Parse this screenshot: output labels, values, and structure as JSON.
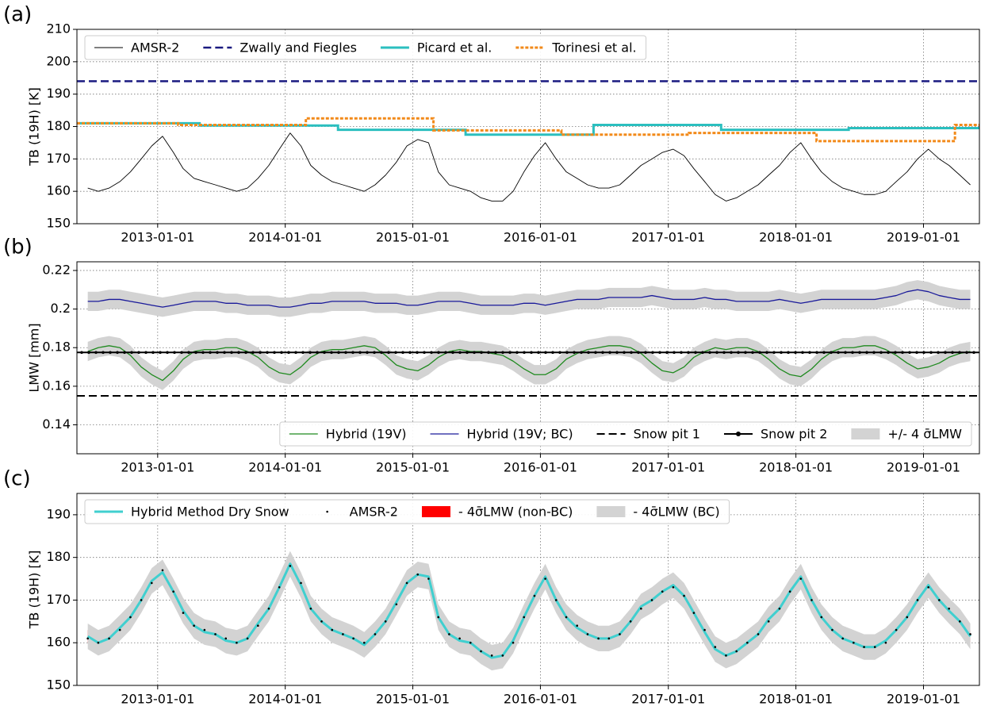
{
  "chart_data": [
    {
      "type": "line",
      "panel_label": "(a)",
      "ylabel": "TB (19H) [K]",
      "xlim": [
        "2012-05-15",
        "2019-06-10"
      ],
      "xticks": [
        "2013-01-01",
        "2014-01-01",
        "2015-01-01",
        "2016-01-01",
        "2017-01-01",
        "2018-01-01",
        "2019-01-01"
      ],
      "ylim": [
        150,
        210
      ],
      "yticks": [
        150,
        160,
        170,
        180,
        190,
        200,
        210
      ],
      "grid": true,
      "legend": "upper left",
      "x": [
        "2012-06-15",
        "2012-07-15",
        "2012-08-15",
        "2012-09-15",
        "2012-10-15",
        "2012-11-15",
        "2012-12-15",
        "2013-01-15",
        "2013-02-15",
        "2013-03-15",
        "2013-04-15",
        "2013-05-15",
        "2013-06-15",
        "2013-07-15",
        "2013-08-15",
        "2013-09-15",
        "2013-10-15",
        "2013-11-15",
        "2013-12-15",
        "2014-01-15",
        "2014-02-15",
        "2014-03-15",
        "2014-04-15",
        "2014-05-15",
        "2014-06-15",
        "2014-07-15",
        "2014-08-15",
        "2014-09-15",
        "2014-10-15",
        "2014-11-15",
        "2014-12-15",
        "2015-01-15",
        "2015-02-15",
        "2015-03-15",
        "2015-04-15",
        "2015-05-15",
        "2015-06-15",
        "2015-07-15",
        "2015-08-15",
        "2015-09-15",
        "2015-10-15",
        "2015-11-15",
        "2015-12-15",
        "2016-01-15",
        "2016-02-15",
        "2016-03-15",
        "2016-04-15",
        "2016-05-15",
        "2016-06-15",
        "2016-07-15",
        "2016-08-15",
        "2016-09-15",
        "2016-10-15",
        "2016-11-15",
        "2016-12-15",
        "2017-01-15",
        "2017-02-15",
        "2017-03-15",
        "2017-04-15",
        "2017-05-15",
        "2017-06-15",
        "2017-07-15",
        "2017-08-15",
        "2017-09-15",
        "2017-10-15",
        "2017-11-15",
        "2017-12-15",
        "2018-01-15",
        "2018-02-15",
        "2018-03-15",
        "2018-04-15",
        "2018-05-15",
        "2018-06-15",
        "2018-07-15",
        "2018-08-15",
        "2018-09-15",
        "2018-10-15",
        "2018-11-15",
        "2018-12-15",
        "2019-01-15",
        "2019-02-15",
        "2019-03-15",
        "2019-04-15",
        "2019-05-15"
      ],
      "series": [
        {
          "name": "AMSR-2",
          "color": "#000000",
          "kind": "line",
          "linestyle": "solid",
          "linewidth": 0.9,
          "values": [
            161,
            160,
            161,
            163,
            166,
            170,
            174,
            177,
            172,
            167,
            164,
            163,
            162,
            161,
            160,
            161,
            164,
            168,
            173,
            178,
            174,
            168,
            165,
            163,
            162,
            161,
            160,
            162,
            165,
            169,
            174,
            176,
            175,
            166,
            162,
            161,
            160,
            158,
            157,
            157,
            160,
            166,
            171,
            175,
            170,
            166,
            164,
            162,
            161,
            161,
            162,
            165,
            168,
            170,
            172,
            173,
            171,
            167,
            163,
            159,
            157,
            158,
            160,
            162,
            165,
            168,
            172,
            175,
            170,
            166,
            163,
            161,
            160,
            159,
            159,
            160,
            163,
            166,
            170,
            173,
            170,
            168,
            165,
            162
          ]
        },
        {
          "name": "Zwally and Fiegles",
          "color": "#1a1a80",
          "kind": "hline",
          "linestyle": "dashed",
          "linewidth": 2.5,
          "value": 194
        },
        {
          "name": "Picard et al.",
          "color": "#2bbfbf",
          "kind": "steps",
          "linestyle": "solid",
          "linewidth": 3,
          "x": [
            "2012-05-15",
            "2013-05-01",
            "2014-06-01",
            "2015-06-01",
            "2016-06-01",
            "2017-06-01",
            "2018-06-01",
            "2019-06-10"
          ],
          "values": [
            181,
            180.3,
            179,
            177.5,
            180.5,
            179,
            179.5,
            179.5
          ]
        },
        {
          "name": "Torinesi et al.",
          "color": "#f28a1a",
          "kind": "steps",
          "linestyle": "dotted",
          "linewidth": 3,
          "x": [
            "2012-05-15",
            "2013-03-01",
            "2014-03-01",
            "2015-03-01",
            "2016-03-01",
            "2017-03-01",
            "2018-03-01",
            "2019-04-01",
            "2019-06-10"
          ],
          "values": [
            181,
            180.5,
            182.5,
            178.8,
            177.5,
            178,
            175.5,
            180.5,
            180.5
          ]
        }
      ]
    },
    {
      "type": "line",
      "panel_label": "(b)",
      "ylabel": "LMW [mm]",
      "xlim": [
        "2012-05-15",
        "2019-06-10"
      ],
      "xticks": [
        "2013-01-01",
        "2014-01-01",
        "2015-01-01",
        "2016-01-01",
        "2017-01-01",
        "2018-01-01",
        "2019-01-01"
      ],
      "ylim": [
        0.125,
        0.2245
      ],
      "yticks": [
        0.14,
        0.16,
        0.18,
        0.2,
        0.22
      ],
      "grid": true,
      "legend": "lower right",
      "x": [
        "2012-06-15",
        "2012-07-15",
        "2012-08-15",
        "2012-09-15",
        "2012-10-15",
        "2012-11-15",
        "2012-12-15",
        "2013-01-15",
        "2013-02-15",
        "2013-03-15",
        "2013-04-15",
        "2013-05-15",
        "2013-06-15",
        "2013-07-15",
        "2013-08-15",
        "2013-09-15",
        "2013-10-15",
        "2013-11-15",
        "2013-12-15",
        "2014-01-15",
        "2014-02-15",
        "2014-03-15",
        "2014-04-15",
        "2014-05-15",
        "2014-06-15",
        "2014-07-15",
        "2014-08-15",
        "2014-09-15",
        "2014-10-15",
        "2014-11-15",
        "2014-12-15",
        "2015-01-15",
        "2015-02-15",
        "2015-03-15",
        "2015-04-15",
        "2015-05-15",
        "2015-06-15",
        "2015-07-15",
        "2015-08-15",
        "2015-09-15",
        "2015-10-15",
        "2015-11-15",
        "2015-12-15",
        "2016-01-15",
        "2016-02-15",
        "2016-03-15",
        "2016-04-15",
        "2016-05-15",
        "2016-06-15",
        "2016-07-15",
        "2016-08-15",
        "2016-09-15",
        "2016-10-15",
        "2016-11-15",
        "2016-12-15",
        "2017-01-15",
        "2017-02-15",
        "2017-03-15",
        "2017-04-15",
        "2017-05-15",
        "2017-06-15",
        "2017-07-15",
        "2017-08-15",
        "2017-09-15",
        "2017-10-15",
        "2017-11-15",
        "2017-12-15",
        "2018-01-15",
        "2018-02-15",
        "2018-03-15",
        "2018-04-15",
        "2018-05-15",
        "2018-06-15",
        "2018-07-15",
        "2018-08-15",
        "2018-09-15",
        "2018-10-15",
        "2018-11-15",
        "2018-12-15",
        "2019-01-15",
        "2019-02-15",
        "2019-03-15",
        "2019-04-15",
        "2019-05-15"
      ],
      "series": [
        {
          "name": "Hybrid (19V)",
          "color": "#1f8a1f",
          "kind": "line",
          "linestyle": "solid",
          "linewidth": 1.3,
          "values": [
            0.178,
            0.18,
            0.181,
            0.18,
            0.176,
            0.17,
            0.166,
            0.163,
            0.168,
            0.174,
            0.178,
            0.179,
            0.179,
            0.18,
            0.18,
            0.178,
            0.175,
            0.17,
            0.167,
            0.166,
            0.17,
            0.175,
            0.178,
            0.179,
            0.179,
            0.18,
            0.181,
            0.18,
            0.176,
            0.171,
            0.169,
            0.168,
            0.171,
            0.175,
            0.178,
            0.179,
            0.178,
            0.178,
            0.177,
            0.176,
            0.173,
            0.169,
            0.166,
            0.166,
            0.169,
            0.174,
            0.177,
            0.179,
            0.18,
            0.181,
            0.181,
            0.18,
            0.177,
            0.172,
            0.168,
            0.167,
            0.17,
            0.175,
            0.178,
            0.18,
            0.179,
            0.18,
            0.18,
            0.178,
            0.174,
            0.169,
            0.166,
            0.165,
            0.169,
            0.174,
            0.178,
            0.18,
            0.18,
            0.181,
            0.181,
            0.179,
            0.176,
            0.172,
            0.169,
            0.17,
            0.172,
            0.175,
            0.177,
            0.178
          ]
        },
        {
          "name": "Hybrid (19V; BC)",
          "color": "#1a1a9a",
          "kind": "line",
          "linestyle": "solid",
          "linewidth": 1.3,
          "values": [
            0.204,
            0.204,
            0.205,
            0.205,
            0.204,
            0.203,
            0.202,
            0.201,
            0.202,
            0.203,
            0.204,
            0.204,
            0.204,
            0.203,
            0.203,
            0.202,
            0.202,
            0.202,
            0.201,
            0.201,
            0.202,
            0.203,
            0.203,
            0.204,
            0.204,
            0.204,
            0.204,
            0.203,
            0.203,
            0.203,
            0.202,
            0.202,
            0.203,
            0.204,
            0.204,
            0.204,
            0.203,
            0.202,
            0.202,
            0.202,
            0.202,
            0.203,
            0.203,
            0.202,
            0.203,
            0.204,
            0.205,
            0.205,
            0.205,
            0.206,
            0.206,
            0.206,
            0.206,
            0.207,
            0.206,
            0.205,
            0.205,
            0.205,
            0.206,
            0.205,
            0.205,
            0.204,
            0.204,
            0.204,
            0.204,
            0.205,
            0.204,
            0.203,
            0.204,
            0.205,
            0.205,
            0.205,
            0.205,
            0.205,
            0.205,
            0.206,
            0.207,
            0.209,
            0.21,
            0.209,
            0.207,
            0.206,
            0.205,
            0.205
          ]
        },
        {
          "name": "Snow pit 1",
          "color": "#000000",
          "kind": "hline",
          "linestyle": "dashed",
          "linewidth": 2,
          "value": 0.155
        },
        {
          "name": "Snow pit 2",
          "color": "#000000",
          "kind": "hline",
          "linestyle": "solid",
          "linewidth": 2,
          "marker": "o",
          "value": 0.1775
        },
        {
          "name": "+/- 4 σ̄LMW",
          "color": "#d3d3d3",
          "kind": "band",
          "width": 0.005
        }
      ]
    },
    {
      "type": "line",
      "panel_label": "(c)",
      "ylabel": "TB (19H) [K]",
      "xlim": [
        "2012-05-15",
        "2019-06-10"
      ],
      "xticks": [
        "2013-01-01",
        "2014-01-01",
        "2015-01-01",
        "2016-01-01",
        "2017-01-01",
        "2018-01-01",
        "2019-01-01"
      ],
      "ylim": [
        150,
        195
      ],
      "yticks": [
        150,
        160,
        170,
        180,
        190
      ],
      "grid": true,
      "legend": "upper left",
      "x": [
        "2012-06-15",
        "2012-07-15",
        "2012-08-15",
        "2012-09-15",
        "2012-10-15",
        "2012-11-15",
        "2012-12-15",
        "2013-01-15",
        "2013-02-15",
        "2013-03-15",
        "2013-04-15",
        "2013-05-15",
        "2013-06-15",
        "2013-07-15",
        "2013-08-15",
        "2013-09-15",
        "2013-10-15",
        "2013-11-15",
        "2013-12-15",
        "2014-01-15",
        "2014-02-15",
        "2014-03-15",
        "2014-04-15",
        "2014-05-15",
        "2014-06-15",
        "2014-07-15",
        "2014-08-15",
        "2014-09-15",
        "2014-10-15",
        "2014-11-15",
        "2014-12-15",
        "2015-01-15",
        "2015-02-15",
        "2015-03-15",
        "2015-04-15",
        "2015-05-15",
        "2015-06-15",
        "2015-07-15",
        "2015-08-15",
        "2015-09-15",
        "2015-10-15",
        "2015-11-15",
        "2015-12-15",
        "2016-01-15",
        "2016-02-15",
        "2016-03-15",
        "2016-04-15",
        "2016-05-15",
        "2016-06-15",
        "2016-07-15",
        "2016-08-15",
        "2016-09-15",
        "2016-10-15",
        "2016-11-15",
        "2016-12-15",
        "2017-01-15",
        "2017-02-15",
        "2017-03-15",
        "2017-04-15",
        "2017-05-15",
        "2017-06-15",
        "2017-07-15",
        "2017-08-15",
        "2017-09-15",
        "2017-10-15",
        "2017-11-15",
        "2017-12-15",
        "2018-01-15",
        "2018-02-15",
        "2018-03-15",
        "2018-04-15",
        "2018-05-15",
        "2018-06-15",
        "2018-07-15",
        "2018-08-15",
        "2018-09-15",
        "2018-10-15",
        "2018-11-15",
        "2018-12-15",
        "2019-01-15",
        "2019-02-15",
        "2019-03-15",
        "2019-04-15",
        "2019-05-15"
      ],
      "series": [
        {
          "name": "Hybrid Method Dry Snow",
          "color": "#40cfcf",
          "kind": "line",
          "linestyle": "solid",
          "linewidth": 3,
          "values": [
            161.5,
            160,
            161,
            163.5,
            166,
            170,
            174.5,
            176.5,
            172,
            167.5,
            164,
            162.5,
            162,
            160.5,
            160,
            161,
            164.5,
            168,
            173,
            178.5,
            173.5,
            168,
            165,
            163,
            162,
            161,
            159.5,
            162,
            165,
            169.5,
            174,
            176,
            175.5,
            166,
            162,
            160.5,
            160,
            158,
            156.5,
            157,
            160.5,
            166,
            171,
            175.5,
            170,
            166,
            163.5,
            162,
            161,
            161,
            162,
            165,
            168.5,
            170,
            172,
            173.5,
            171,
            167,
            162.5,
            158.5,
            157,
            158,
            160,
            162,
            165.5,
            168,
            172,
            175.5,
            170,
            166,
            163,
            161,
            160,
            159,
            159,
            160.5,
            163,
            166,
            170,
            173.5,
            170,
            167.5,
            165,
            161.5
          ]
        },
        {
          "name": "AMSR-2",
          "color": "#000000",
          "kind": "dots",
          "values": [
            161,
            160,
            161,
            163,
            166,
            170,
            174,
            177,
            172,
            167,
            164,
            163,
            162,
            161,
            160,
            161,
            164,
            168,
            173,
            178,
            174,
            168,
            165,
            163,
            162,
            161,
            160,
            162,
            165,
            169,
            174,
            176,
            175,
            166,
            162,
            161,
            160,
            158,
            157,
            157,
            160,
            166,
            171,
            175,
            170,
            166,
            164,
            162,
            161,
            161,
            162,
            165,
            168,
            170,
            172,
            173,
            171,
            167,
            163,
            159,
            157,
            158,
            160,
            162,
            165,
            168,
            172,
            175,
            170,
            166,
            163,
            161,
            160,
            159,
            159,
            160,
            163,
            166,
            170,
            173,
            170,
            168,
            165,
            162
          ]
        },
        {
          "name": "- 4σ̄LMW (non-BC)",
          "color": "#ff0000",
          "kind": "band",
          "width": 1.5
        },
        {
          "name": "- 4σ̄LMW (BC)",
          "color": "#d3d3d3",
          "kind": "band",
          "width": 3
        }
      ]
    }
  ]
}
